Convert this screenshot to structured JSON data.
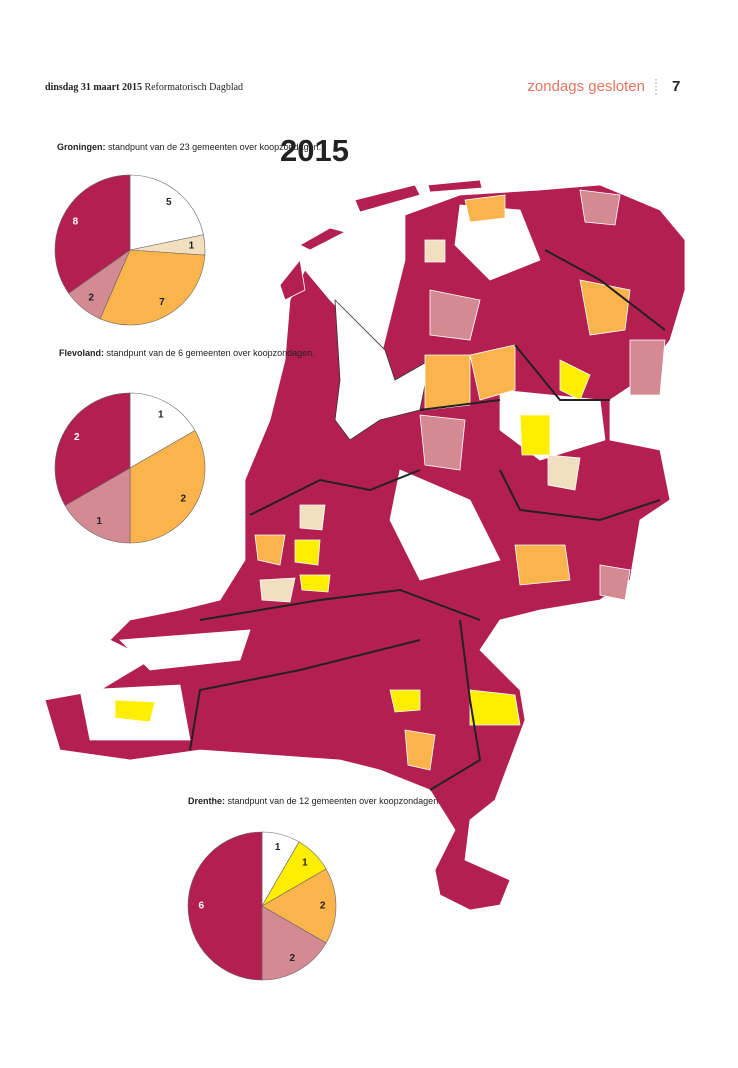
{
  "header": {
    "date": "dinsdag 31 maart 2015",
    "paper": "Reformatorisch Dagblad",
    "section": "zondags gesloten",
    "page": "7"
  },
  "map_title": "2015",
  "chart_data": [
    {
      "type": "pie",
      "title": "Groningen:",
      "subtitle": "standpunt van de 23 gemeenten over koopzondagen.",
      "values": [
        5,
        1,
        7,
        2,
        8
      ],
      "colors": [
        "#ffffff",
        "#f2dfbf",
        "#fbb34c",
        "#d38a93",
        "#b31f50"
      ]
    },
    {
      "type": "pie",
      "title": "Flevoland:",
      "subtitle": "standpunt van de 6 gemeenten over koopzondagen.",
      "values": [
        1,
        2,
        1,
        2
      ],
      "colors": [
        "#ffffff",
        "#fbb34c",
        "#d38a93",
        "#b31f50"
      ]
    },
    {
      "type": "pie",
      "title": "Drenthe:",
      "subtitle": "standpunt van de 12 gemeenten over koopzondagen.",
      "values": [
        1,
        1,
        2,
        2,
        6
      ],
      "colors": [
        "#ffffff",
        "#ffee00",
        "#fbb34c",
        "#d38a93",
        "#b31f50"
      ]
    }
  ]
}
